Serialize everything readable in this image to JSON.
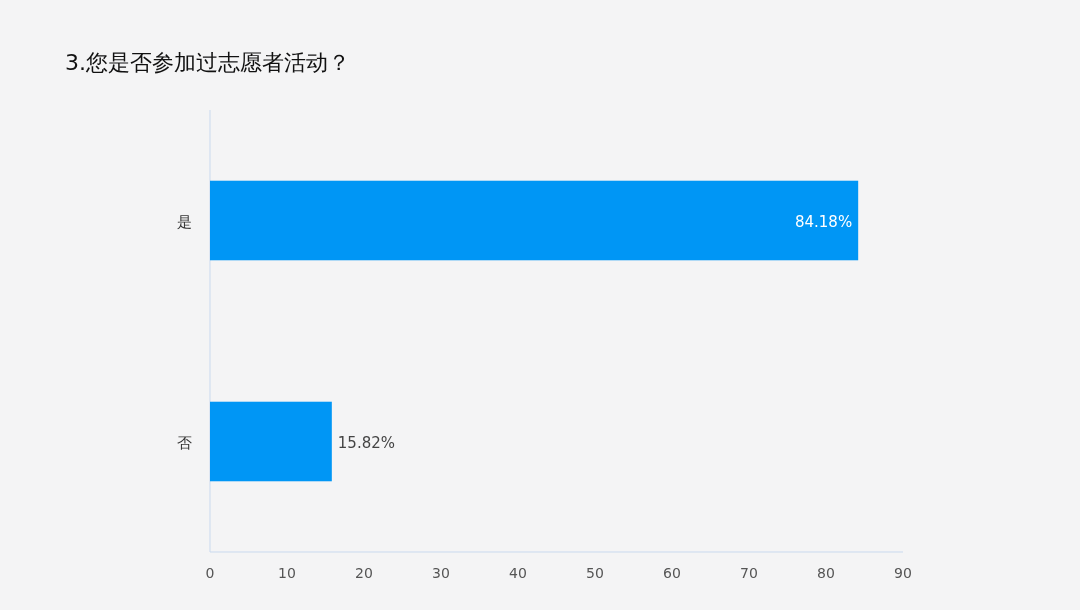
{
  "chart_data": {
    "type": "bar",
    "orientation": "horizontal",
    "title": "3.您是否参加过志愿者活动？",
    "categories": [
      "是",
      "否"
    ],
    "values": [
      84.18,
      15.82
    ],
    "value_labels": [
      "84.18%",
      "15.82%"
    ],
    "color": "#0096f5",
    "xlim": [
      0,
      90
    ],
    "xticks": [
      0,
      10,
      20,
      30,
      40,
      50,
      60,
      70,
      80,
      90
    ],
    "grid": false
  }
}
